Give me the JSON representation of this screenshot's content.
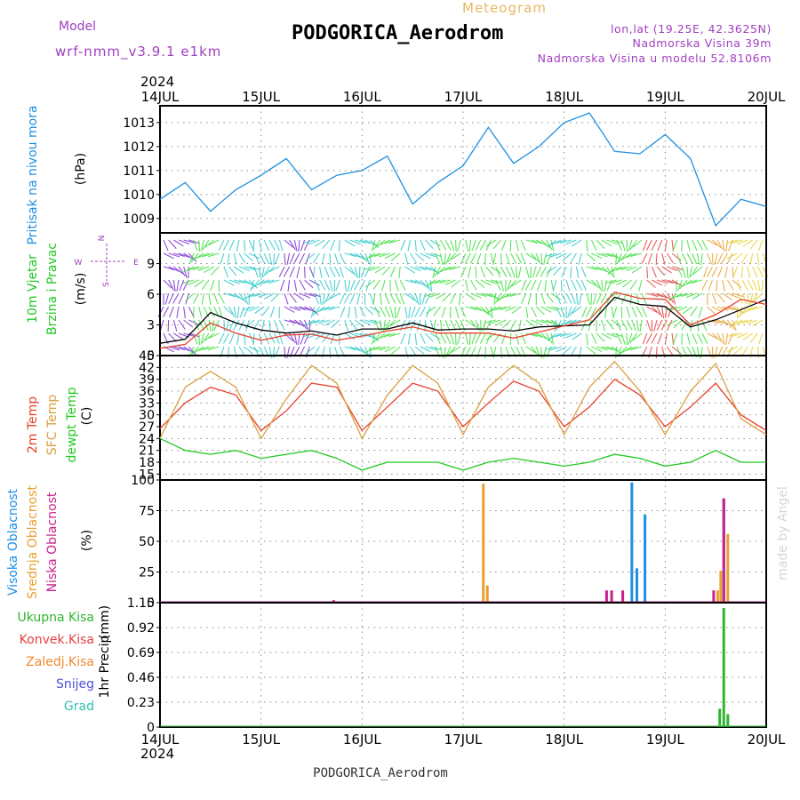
{
  "header": {
    "model_label": "Model",
    "model_name": "wrf-nmm_v3.9.1  e1km",
    "meteogram_label": "Meteogram",
    "station_title": "PODGORICA_Aerodrom",
    "lonlat": "lon,lat (19.25E, 42.3625N)",
    "altitude": "Nadmorska Visina 39m",
    "model_altitude": "Nadmorska Visina u modelu 52.8106m",
    "footer_title": "PODGORICA_Aerodrom",
    "watermark": "made by Angel"
  },
  "colors": {
    "pressure": "#1e90e0",
    "wind_speed": "#000000",
    "gust": "#e8402a",
    "temp2m": "#e8402a",
    "sfc_temp": "#daa040",
    "dewpt": "#22c922",
    "high_cloud": "#1e90e0",
    "mid_cloud": "#e8a030",
    "low_cloud": "#c8208c",
    "total_precip": "#2fb52f",
    "conv_precip": "#e84040",
    "frozen_precip": "#f08a30",
    "snow": "#4b50d8",
    "graupel": "#30c0b0",
    "model_label": "#a040c0"
  },
  "chart_data": [
    {
      "type": "line",
      "panel": "pressure",
      "ylabel_main": "Pritisak na nivou mora",
      "ylabel_unit": "(hPa)",
      "top_year": "2024",
      "bottom_year": "2024",
      "x_ticks": [
        "14JUL",
        "15JUL",
        "16JUL",
        "17JUL",
        "18JUL",
        "19JUL",
        "20JUL"
      ],
      "x_range_days": [
        0,
        6
      ],
      "ylim": [
        1008.4,
        1013.7
      ],
      "y_ticks": [
        "1009",
        "1010",
        "1011",
        "1012",
        "1013"
      ],
      "y_tick_values": [
        1009,
        1010,
        1011,
        1012,
        1013
      ],
      "x": [
        0,
        0.25,
        0.5,
        0.75,
        1,
        1.25,
        1.5,
        1.75,
        2,
        2.25,
        2.5,
        2.75,
        3,
        3.25,
        3.5,
        3.75,
        4,
        4.25,
        4.5,
        4.75,
        5,
        5.25,
        5.5,
        5.75,
        6
      ],
      "series": [
        {
          "values": [
            1009.8,
            1010.5,
            1009.3,
            1010.2,
            1010.8,
            1011.5,
            1010.2,
            1010.8,
            1011.0,
            1011.6,
            1009.6,
            1010.5,
            1011.2,
            1012.8,
            1011.3,
            1012.0,
            1013.0,
            1013.4,
            1011.8,
            1011.7,
            1012.5,
            1011.5,
            1008.7,
            1009.8,
            1009.5
          ]
        }
      ]
    },
    {
      "type": "line",
      "panel": "wind",
      "ylabel_main": "10m Vjetar",
      "ylabel_sub": "Brzina i Pravac",
      "ylabel_unit": "(m/s)",
      "compass": {
        "north": "N",
        "south": "S",
        "east": "E",
        "west": "W"
      },
      "ylim": [
        0,
        12
      ],
      "y_ticks": [
        "0",
        "3",
        "6",
        "9"
      ],
      "y_tick_values": [
        0,
        3,
        6,
        9
      ],
      "x": [
        0,
        0.25,
        0.5,
        0.75,
        1,
        1.25,
        1.5,
        1.75,
        2,
        2.25,
        2.5,
        2.75,
        3,
        3.25,
        3.5,
        3.75,
        4,
        4.25,
        4.5,
        4.75,
        5,
        5.25,
        5.5,
        5.75,
        6
      ],
      "series": [
        {
          "values": [
            1.2,
            1.6,
            4.2,
            3.2,
            2.5,
            2.2,
            2.4,
            2.0,
            2.6,
            2.6,
            3.2,
            2.5,
            2.6,
            2.6,
            2.4,
            2.8,
            2.9,
            3.0,
            5.7,
            5.0,
            4.8,
            2.8,
            3.5,
            4.5,
            5.5
          ]
        },
        {
          "values": [
            0.7,
            1.1,
            3.2,
            2.2,
            1.5,
            2.0,
            2.1,
            1.5,
            1.9,
            2.4,
            2.8,
            2.2,
            2.2,
            2.2,
            1.7,
            2.3,
            2.9,
            3.5,
            6.2,
            5.6,
            5.5,
            3.0,
            4.0,
            5.5,
            5.0
          ]
        }
      ]
    },
    {
      "type": "line",
      "panel": "temperature",
      "ylabel_main": "2m Temp",
      "ylabel_sub1": "SFC Temp",
      "ylabel_sub2": "dewpt Temp",
      "ylabel_unit": "(C)",
      "ylim": [
        13.5,
        45
      ],
      "y_ticks": [
        "15",
        "18",
        "21",
        "24",
        "27",
        "30",
        "33",
        "36",
        "39",
        "42",
        "45"
      ],
      "y_tick_values": [
        15,
        18,
        21,
        24,
        27,
        30,
        33,
        36,
        39,
        42,
        45
      ],
      "x": [
        0,
        0.25,
        0.5,
        0.75,
        1,
        1.25,
        1.5,
        1.75,
        2,
        2.25,
        2.5,
        2.75,
        3,
        3.25,
        3.5,
        3.75,
        4,
        4.25,
        4.5,
        4.75,
        5,
        5.25,
        5.5,
        5.75,
        6
      ],
      "series": [
        {
          "values": [
            26.5,
            33,
            37,
            35,
            26,
            31,
            38,
            37,
            26,
            32,
            38,
            36,
            27,
            33,
            38.5,
            36,
            27,
            32,
            39,
            35,
            27,
            32,
            38,
            30,
            26
          ]
        },
        {
          "values": [
            24,
            37,
            41,
            37,
            24,
            34,
            42.5,
            38,
            24,
            35,
            42.5,
            38,
            25,
            37,
            42.5,
            38,
            25,
            37,
            43.5,
            36,
            25,
            36,
            43,
            29,
            25
          ]
        },
        {
          "values": [
            24,
            21,
            20,
            21,
            19,
            20,
            21,
            19,
            16,
            18,
            18,
            18,
            16,
            18,
            19,
            18,
            17,
            18,
            20,
            19,
            17,
            18,
            21,
            18,
            18
          ]
        }
      ]
    },
    {
      "type": "bar",
      "panel": "cloud",
      "ylabel_main": "Visoka Oblacnost",
      "ylabel_sub1": "Srednja Oblacnost",
      "ylabel_sub2": "Niska Oblacnost",
      "ylabel_unit": "(%)",
      "ylim": [
        0,
        100
      ],
      "y_ticks": [
        "0",
        "25",
        "50",
        "75",
        "100"
      ],
      "y_tick_values": [
        0,
        25,
        50,
        75,
        100
      ],
      "series": [
        {
          "name": "Visoka Oblacnost",
          "x": [
            4.67,
            4.72,
            4.8,
            5.58
          ],
          "values": [
            98,
            28,
            72,
            85
          ]
        },
        {
          "name": "Srednja Oblacnost",
          "x": [
            3.2,
            3.24,
            5.52,
            5.55,
            5.62,
            1.72
          ],
          "values": [
            97,
            14,
            10,
            26,
            56,
            2
          ]
        },
        {
          "name": "Niska Oblacnost",
          "x": [
            4.42,
            4.47,
            4.58,
            5.48,
            5.58,
            1.72
          ],
          "values": [
            10,
            10,
            10,
            10,
            85,
            2
          ]
        }
      ]
    },
    {
      "type": "bar",
      "panel": "precip",
      "ylabel_main": "1hr Precip",
      "ylabel_unit": "(mm)",
      "legend": [
        "Ukupna Kisa",
        "Konvek.Kisa",
        "Zaledj.Kisa",
        "Snijeg",
        "Grad"
      ],
      "ylim": [
        0,
        1.15
      ],
      "y_ticks": [
        "0",
        "0.23",
        "0.46",
        "0.69",
        "0.92",
        "1.15"
      ],
      "y_tick_values": [
        0,
        0.23,
        0.46,
        0.69,
        0.92,
        1.15
      ],
      "series": [
        {
          "name": "Ukupna Kisa",
          "x": [
            5.54,
            5.58,
            5.62
          ],
          "values": [
            0.17,
            1.1,
            0.12
          ]
        }
      ]
    }
  ]
}
